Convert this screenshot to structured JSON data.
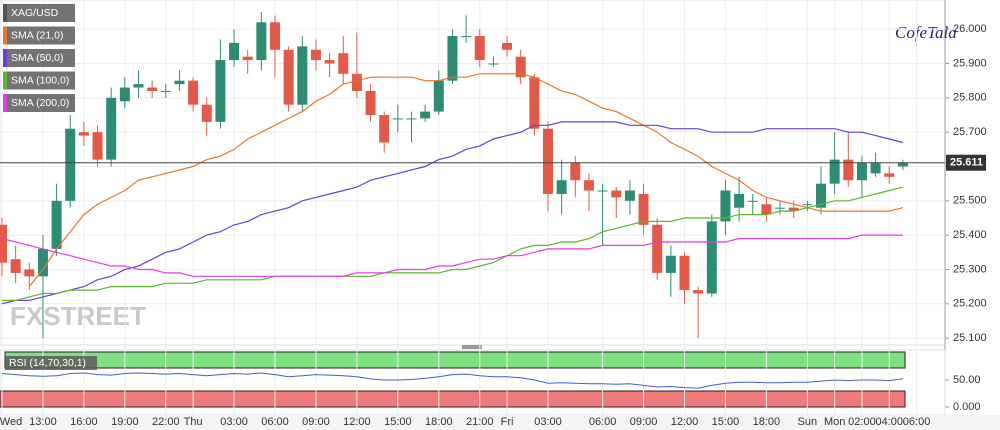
{
  "chart_data": [
    {
      "type": "candlestick",
      "title": "XAG/USD",
      "watermark": "FXSTREET",
      "logo": "CofeTala",
      "up_color": "#2e8b74",
      "down_color": "#e05a47",
      "categories": [
        "Wed",
        null,
        null,
        "13:00",
        null,
        null,
        "16:00",
        null,
        null,
        "19:00",
        null,
        null,
        "22:00",
        null,
        "Thu",
        null,
        null,
        "03:00",
        null,
        null,
        "06:00",
        null,
        null,
        "09:00",
        null,
        null,
        "12:00",
        null,
        null,
        "15:00",
        null,
        null,
        "18:00",
        null,
        null,
        "21:00",
        null,
        "Fri",
        null,
        null,
        "03:00",
        null,
        null,
        null,
        "06:00",
        null,
        null,
        "09:00",
        null,
        null,
        "12:00",
        null,
        null,
        "15:00",
        null,
        null,
        "18:00",
        null,
        null,
        "Sun",
        null,
        "Mon",
        null,
        "02:00",
        null,
        "04:00",
        null,
        "06:00"
      ],
      "open": [
        25.43,
        25.33,
        25.3,
        25.28,
        25.36,
        25.5,
        25.7,
        25.7,
        25.62,
        25.79,
        25.83,
        25.83,
        25.82,
        25.84,
        25.85,
        25.78,
        25.73,
        25.91,
        25.92,
        25.91,
        26.02,
        25.94,
        25.78,
        25.94,
        25.91,
        25.93,
        25.87,
        25.82,
        25.75,
        25.74,
        25.74,
        25.74,
        25.76,
        25.85,
        25.98,
        25.98,
        25.9,
        25.96,
        25.92,
        25.86,
        25.71,
        25.52,
        25.61,
        25.56,
        25.53,
        25.53,
        25.5,
        25.52,
        25.43,
        25.29,
        25.34,
        25.24,
        25.23,
        25.44,
        25.48,
        25.5,
        25.49,
        25.48,
        25.48,
        25.49,
        25.48,
        25.55,
        25.62,
        25.56,
        25.58,
        25.58,
        25.6,
        null
      ],
      "high": [
        25.45,
        25.37,
        25.32,
        25.4,
        25.55,
        25.75,
        25.73,
        25.72,
        25.83,
        25.86,
        25.88,
        25.85,
        25.84,
        25.88,
        25.86,
        25.8,
        25.97,
        26.0,
        25.94,
        26.05,
        26.04,
        25.95,
        25.98,
        25.97,
        25.93,
        25.98,
        25.99,
        25.84,
        25.76,
        25.78,
        25.76,
        25.78,
        25.88,
        26.0,
        26.04,
        26.0,
        25.92,
        25.98,
        25.94,
        25.87,
        25.73,
        25.62,
        25.63,
        25.58,
        25.55,
        25.54,
        25.56,
        25.55,
        25.45,
        25.37,
        25.35,
        25.25,
        25.46,
        25.56,
        25.57,
        25.52,
        25.51,
        25.5,
        25.5,
        25.5,
        25.6,
        25.7,
        25.7,
        25.63,
        25.64,
        25.6,
        25.62,
        null
      ],
      "low": [
        25.28,
        25.26,
        25.24,
        25.1,
        25.34,
        25.48,
        25.66,
        25.6,
        25.6,
        25.77,
        25.8,
        25.8,
        25.8,
        25.82,
        25.76,
        25.69,
        25.71,
        25.89,
        25.87,
        25.88,
        25.86,
        25.76,
        25.76,
        25.88,
        25.86,
        25.84,
        25.8,
        25.73,
        25.64,
        25.7,
        25.67,
        25.73,
        25.75,
        25.84,
        25.96,
        25.89,
        25.89,
        25.92,
        25.84,
        25.69,
        25.47,
        25.46,
        25.51,
        25.47,
        25.37,
        25.45,
        25.46,
        25.4,
        25.27,
        25.22,
        25.2,
        25.1,
        25.22,
        25.4,
        25.44,
        25.46,
        25.44,
        25.46,
        25.45,
        25.47,
        25.46,
        25.52,
        25.54,
        25.51,
        25.57,
        25.55,
        25.59,
        null
      ],
      "close": [
        25.32,
        25.29,
        25.28,
        25.36,
        25.5,
        25.71,
        25.69,
        25.62,
        25.8,
        25.83,
        25.84,
        25.82,
        25.82,
        25.85,
        25.78,
        25.73,
        25.91,
        25.96,
        25.91,
        26.02,
        25.94,
        25.78,
        25.95,
        25.91,
        25.9,
        25.87,
        25.82,
        25.75,
        25.67,
        25.74,
        25.74,
        25.76,
        25.85,
        25.98,
        25.98,
        25.91,
        25.9,
        25.94,
        25.86,
        25.71,
        25.52,
        25.56,
        25.56,
        25.53,
        25.53,
        25.51,
        25.53,
        25.43,
        25.29,
        25.34,
        25.24,
        25.23,
        25.44,
        25.53,
        25.52,
        25.5,
        25.46,
        25.48,
        25.47,
        25.49,
        25.55,
        25.62,
        25.56,
        25.61,
        25.61,
        25.57,
        25.611,
        null
      ],
      "series": [
        {
          "name": "SMA (21,0)",
          "color": "#e8762b",
          "values": [
            null,
            null,
            25.25,
            25.3,
            25.36,
            25.41,
            25.46,
            25.49,
            25.51,
            25.53,
            25.56,
            25.57,
            25.58,
            25.59,
            25.6,
            25.62,
            25.63,
            25.65,
            25.68,
            25.7,
            25.72,
            25.74,
            25.76,
            25.79,
            25.81,
            25.84,
            25.85,
            25.86,
            25.86,
            25.86,
            25.86,
            25.85,
            25.85,
            25.86,
            25.86,
            25.87,
            25.87,
            25.87,
            25.87,
            25.86,
            25.84,
            25.82,
            25.81,
            25.79,
            25.77,
            25.76,
            25.74,
            25.72,
            25.7,
            25.67,
            25.65,
            25.63,
            25.6,
            25.58,
            25.56,
            25.53,
            25.51,
            25.5,
            25.49,
            25.48,
            25.47,
            25.47,
            25.47,
            25.47,
            25.47,
            25.47,
            25.48,
            null
          ]
        },
        {
          "name": "SMA (50,0)",
          "color": "#6a3fd4",
          "values": [
            25.2,
            25.21,
            25.21,
            25.22,
            25.23,
            25.24,
            25.25,
            25.27,
            25.28,
            25.3,
            25.31,
            25.33,
            25.35,
            25.36,
            25.38,
            25.4,
            25.41,
            25.43,
            25.44,
            25.46,
            25.47,
            25.48,
            25.5,
            25.51,
            25.52,
            25.53,
            25.54,
            25.56,
            25.57,
            25.58,
            25.59,
            25.6,
            25.62,
            25.63,
            25.65,
            25.66,
            25.68,
            25.69,
            25.7,
            25.72,
            25.72,
            25.73,
            25.73,
            25.73,
            25.73,
            25.73,
            25.72,
            25.72,
            25.72,
            25.71,
            25.71,
            25.71,
            25.7,
            25.7,
            25.7,
            25.7,
            25.71,
            25.71,
            25.71,
            25.71,
            25.71,
            25.71,
            25.7,
            25.7,
            25.69,
            25.68,
            25.67,
            null
          ]
        },
        {
          "name": "SMA (100,0)",
          "color": "#5cb531",
          "values": [
            25.21,
            25.21,
            25.22,
            25.23,
            25.23,
            25.24,
            25.24,
            25.24,
            25.25,
            25.25,
            25.25,
            25.25,
            25.26,
            25.26,
            25.26,
            25.27,
            25.27,
            25.27,
            25.27,
            25.27,
            25.28,
            25.28,
            25.28,
            25.28,
            25.28,
            25.28,
            25.28,
            25.28,
            25.29,
            25.29,
            25.29,
            25.29,
            25.29,
            25.3,
            25.3,
            25.31,
            25.32,
            25.34,
            25.36,
            25.37,
            25.37,
            25.38,
            25.38,
            25.39,
            25.41,
            25.42,
            25.43,
            25.44,
            25.44,
            25.44,
            25.45,
            25.45,
            25.45,
            25.45,
            25.46,
            25.46,
            25.46,
            25.47,
            25.47,
            25.48,
            25.49,
            25.5,
            25.5,
            25.51,
            25.52,
            25.53,
            25.54,
            null
          ]
        },
        {
          "name": "SMA (200,0)",
          "color": "#e23fe0",
          "values": [
            25.39,
            25.38,
            25.37,
            25.36,
            25.35,
            25.34,
            25.33,
            25.32,
            25.31,
            25.31,
            25.3,
            25.3,
            25.29,
            25.29,
            25.28,
            25.28,
            25.28,
            25.28,
            25.28,
            25.28,
            25.28,
            25.28,
            25.28,
            25.28,
            25.28,
            25.28,
            25.29,
            25.29,
            25.29,
            25.3,
            25.3,
            25.3,
            25.31,
            25.31,
            25.32,
            25.33,
            25.33,
            25.34,
            25.34,
            25.35,
            25.36,
            25.36,
            25.36,
            25.36,
            25.37,
            25.37,
            25.37,
            25.37,
            25.38,
            25.38,
            25.38,
            25.38,
            25.38,
            25.38,
            25.39,
            25.39,
            25.39,
            25.39,
            25.39,
            25.39,
            25.39,
            25.39,
            25.39,
            25.4,
            25.4,
            25.4,
            25.4,
            null
          ]
        }
      ],
      "last_price": 25.611,
      "ylim": [
        25.08,
        26.085
      ],
      "yticks": [
        {
          "value": 25.1,
          "label": "25.100"
        },
        {
          "value": 25.2,
          "label": "25.200"
        },
        {
          "value": 25.3,
          "label": "25.300"
        },
        {
          "value": 25.4,
          "label": "25.400"
        },
        {
          "value": 25.5,
          "label": "25.500"
        },
        {
          "value": 25.6,
          "label": "25.600"
        },
        {
          "value": 25.7,
          "label": "25.700"
        },
        {
          "value": 25.8,
          "label": "25.800"
        },
        {
          "value": 25.9,
          "label": "25.900"
        },
        {
          "value": 26.0,
          "label": "26.000"
        }
      ],
      "grid": true
    },
    {
      "type": "line",
      "title": "RSI (14,70,30,1)",
      "color": "#3f5fd6",
      "values": [
        62,
        60,
        58,
        57,
        58,
        62,
        63,
        60,
        59,
        62,
        63,
        62,
        61,
        62,
        60,
        58,
        60,
        62,
        61,
        63,
        60,
        56,
        58,
        60,
        59,
        58,
        56,
        52,
        50,
        50,
        51,
        53,
        56,
        60,
        61,
        58,
        56,
        56,
        54,
        50,
        44,
        45,
        44,
        43,
        43,
        42,
        43,
        40,
        37,
        38,
        36,
        35,
        40,
        44,
        46,
        46,
        45,
        45,
        46,
        46,
        48,
        50,
        49,
        50,
        50,
        49,
        52,
        null
      ],
      "ylim": [
        0,
        100
      ],
      "yticks": [
        {
          "value": 50,
          "label": "50.00"
        },
        {
          "value": 0,
          "label": "0.000"
        }
      ]
    }
  ]
}
